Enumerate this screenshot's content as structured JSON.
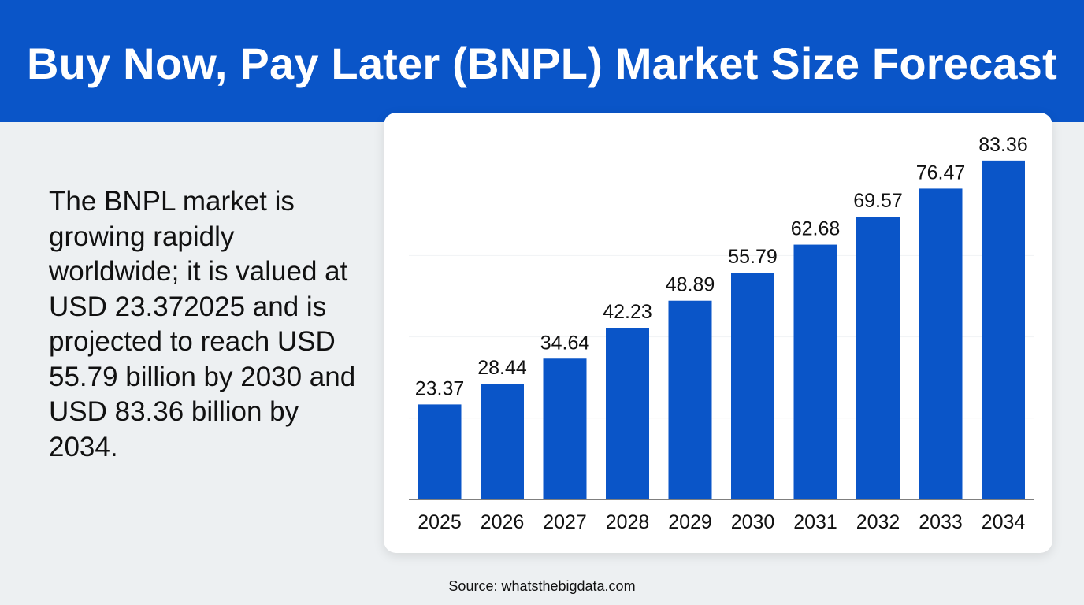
{
  "header": {
    "title": "Buy Now, Pay Later (BNPL) Market Size Forecast"
  },
  "summary": {
    "text": "The BNPL market is growing rapidly worldwide; it is valued at USD 23.372025 and is projected to reach USD 55.79 billion by 2030 and USD 83.36 billion by 2034."
  },
  "source": {
    "text": "Source: whatsthebigdata.com"
  },
  "colors": {
    "brand": "#0a55c8",
    "bar": "#0a55c8",
    "background": "#edf0f2",
    "card": "#ffffff",
    "text": "#111111"
  },
  "chart_data": {
    "type": "bar",
    "categories": [
      "2025",
      "2026",
      "2027",
      "2028",
      "2029",
      "2030",
      "2031",
      "2032",
      "2033",
      "2034"
    ],
    "values": [
      23.37,
      28.44,
      34.64,
      42.23,
      48.89,
      55.79,
      62.68,
      69.57,
      76.47,
      83.36
    ],
    "value_labels": [
      "23.37",
      "28.44",
      "34.64",
      "42.23",
      "48.89",
      "55.79",
      "62.68",
      "69.57",
      "76.47",
      "83.36"
    ],
    "title": "",
    "xlabel": "",
    "ylabel": "",
    "ylim": [
      0,
      84
    ],
    "grid": true,
    "legend": "none"
  }
}
